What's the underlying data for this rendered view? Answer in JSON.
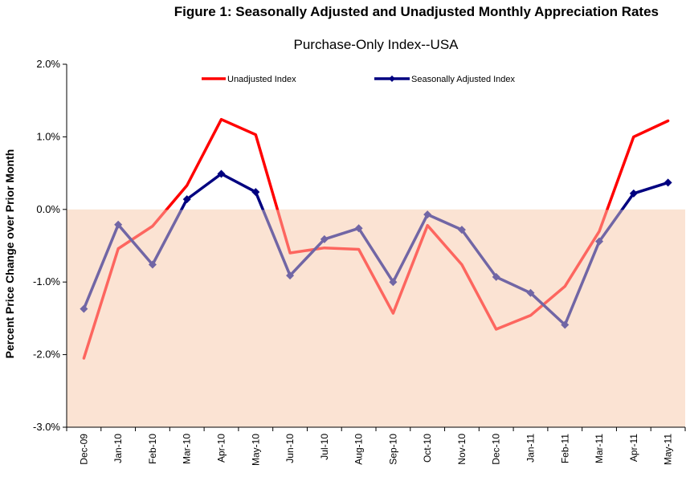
{
  "figure_title": "Figure 1: Seasonally Adjusted and Unadjusted Monthly Appreciation Rates",
  "chart_data": {
    "type": "line",
    "title": "Purchase-Only Index--USA",
    "xlabel": "",
    "ylabel": "Percent Price Change over Prior Month",
    "ylim": [
      -3.0,
      2.0
    ],
    "yticks": [
      2.0,
      1.0,
      0.0,
      -1.0,
      -2.0,
      -3.0
    ],
    "ytick_labels": [
      "2.0%",
      "1.0%",
      "0.0%",
      "-1.0%",
      "-2.0%",
      "-3.0%"
    ],
    "categories": [
      "Dec-09",
      "Jan-10",
      "Feb-10",
      "Mar-10",
      "Apr-10",
      "May-10",
      "Jun-10",
      "Jul-10",
      "Aug-10",
      "Sep-10",
      "Oct-10",
      "Nov-10",
      "Dec-10",
      "Jan-11",
      "Feb-11",
      "Mar-11",
      "Apr-11",
      "May-11"
    ],
    "shaded_region": {
      "from": -3.0,
      "to": 0.0,
      "color": "#fbe3d3"
    },
    "legend_position": "top",
    "series": [
      {
        "name": "Unadjusted Index",
        "color": "#ff0000",
        "marker": "none",
        "values": [
          -2.05,
          -0.54,
          -0.23,
          0.33,
          1.24,
          1.03,
          -0.6,
          -0.53,
          -0.55,
          -1.43,
          -0.22,
          -0.76,
          -1.65,
          -1.46,
          -1.06,
          -0.3,
          1.0,
          1.22
        ]
      },
      {
        "name": "Seasonally Adjusted Index",
        "color": "#000080",
        "marker": "diamond",
        "values": [
          -1.37,
          -0.21,
          -0.76,
          0.14,
          0.49,
          0.24,
          -0.91,
          -0.41,
          -0.26,
          -1.0,
          -0.07,
          -0.28,
          -0.93,
          -1.15,
          -1.59,
          -0.44,
          0.22,
          0.37
        ]
      }
    ]
  }
}
